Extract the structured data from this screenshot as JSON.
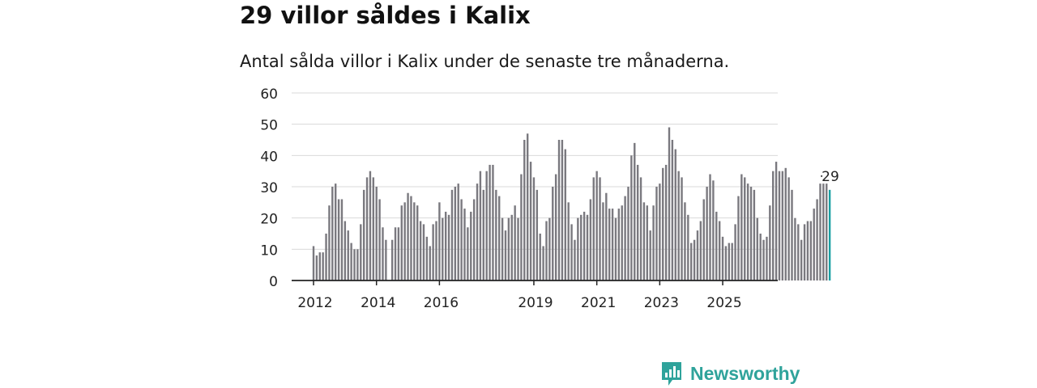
{
  "title": "29 villor såldes i Kalix",
  "subtitle": "Antal sålda villor i Kalix under de senaste tre månaderna.",
  "brand": "Newsworthy",
  "colors": {
    "bar": "#7a797f",
    "highlight": "#1aa0a3",
    "grid": "#d9d9d9",
    "axis": "#222222",
    "brand": "#2fa39b"
  },
  "chart_data": {
    "type": "bar",
    "title": "29 villor såldes i Kalix",
    "subtitle": "Antal sålda villor i Kalix under de senaste tre månaderna.",
    "xlabel": "",
    "ylabel": "",
    "ylim": [
      0,
      60
    ],
    "yticks": [
      0,
      10,
      20,
      30,
      40,
      50,
      60
    ],
    "grid": true,
    "x_start": "2012-01",
    "x_tick_labels": [
      {
        "label": "2012",
        "index": 0
      },
      {
        "label": "2014",
        "index": 20
      },
      {
        "label": "2016",
        "index": 40
      },
      {
        "label": "2019",
        "index": 70
      },
      {
        "label": "2021",
        "index": 90
      },
      {
        "label": "2023",
        "index": 110
      },
      {
        "label": "2025",
        "index": 130
      }
    ],
    "values": [
      11,
      8,
      9,
      9,
      15,
      24,
      30,
      31,
      26,
      26,
      19,
      16,
      12,
      10,
      10,
      18,
      29,
      33,
      35,
      33,
      30,
      26,
      17,
      13,
      0,
      13,
      17,
      17,
      24,
      25,
      28,
      27,
      25,
      24,
      19,
      18,
      14,
      11,
      18,
      19,
      25,
      20,
      22,
      21,
      29,
      30,
      31,
      26,
      23,
      17,
      22,
      26,
      31,
      35,
      29,
      35,
      37,
      37,
      29,
      27,
      20,
      16,
      20,
      21,
      24,
      20,
      34,
      45,
      47,
      38,
      33,
      29,
      15,
      11,
      19,
      20,
      30,
      34,
      45,
      45,
      42,
      25,
      18,
      13,
      20,
      21,
      22,
      21,
      26,
      33,
      35,
      33,
      25,
      28,
      23,
      23,
      20,
      23,
      24,
      27,
      30,
      40,
      44,
      37,
      33,
      25,
      24,
      16,
      24,
      30,
      31,
      36,
      37,
      49,
      45,
      42,
      35,
      33,
      25,
      21,
      12,
      13,
      16,
      19,
      26,
      30,
      34,
      32,
      22,
      19,
      14,
      11,
      12,
      12,
      18,
      27,
      34,
      33,
      31,
      30,
      29,
      20,
      15,
      13,
      14,
      24,
      35,
      38,
      35,
      35,
      36,
      33,
      29,
      20,
      18,
      13,
      18,
      19,
      19,
      23,
      26,
      31,
      31,
      31,
      29
    ],
    "highlight_index": 164,
    "annotation": "29"
  }
}
